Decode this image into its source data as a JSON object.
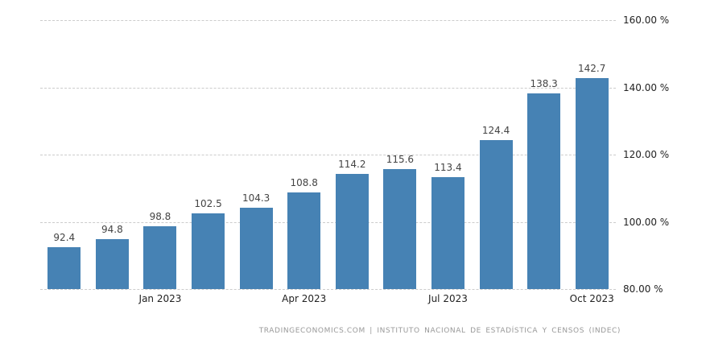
{
  "chart_data": {
    "type": "bar",
    "values": [
      92.4,
      94.8,
      98.8,
      102.5,
      104.3,
      108.8,
      114.2,
      115.6,
      113.4,
      124.4,
      138.3,
      142.7
    ],
    "value_labels": [
      "92.4",
      "94.8",
      "98.8",
      "102.5",
      "104.3",
      "108.8",
      "114.2",
      "115.6",
      "113.4",
      "124.4",
      "138.3",
      "142.7"
    ],
    "x_tick_labels": [
      {
        "label": "Jan 2023",
        "bar_index": 2
      },
      {
        "label": "Apr 2023",
        "bar_index": 5
      },
      {
        "label": "Jul 2023",
        "bar_index": 8
      },
      {
        "label": "Oct 2023",
        "bar_index": 11
      }
    ],
    "y_ticks": [
      160,
      140,
      120,
      100,
      80
    ],
    "y_tick_labels": [
      "160.00 %",
      "140.00 %",
      "120.00 %",
      "100.00 %",
      "80.00 %"
    ],
    "ylim": [
      80,
      160
    ],
    "title": "",
    "xlabel": "",
    "ylabel": "",
    "legend": "none",
    "grid": "horizontal-dashed",
    "bar_color": "#4682b4"
  },
  "footer": {
    "attribution": "TRADINGECONOMICS.COM | INSTITUTO NACIONAL DE ESTADÍSTICA Y CENSOS (INDEC)"
  }
}
